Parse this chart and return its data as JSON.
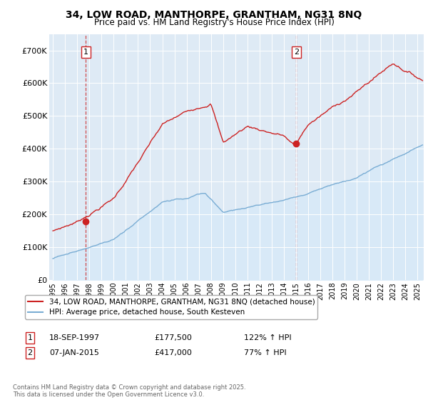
{
  "title1": "34, LOW ROAD, MANTHORPE, GRANTHAM, NG31 8NQ",
  "title2": "Price paid vs. HM Land Registry's House Price Index (HPI)",
  "hpi_color": "#7aadd4",
  "hpi_fill_color": "#d6e9f8",
  "price_color": "#cc2222",
  "vline_color": "#cc2222",
  "plot_bg_color": "#deeaf5",
  "ytick_labels": [
    "£0",
    "£100K",
    "£200K",
    "£300K",
    "£400K",
    "£500K",
    "£600K",
    "£700K"
  ],
  "yticks": [
    0,
    100000,
    200000,
    300000,
    400000,
    500000,
    600000,
    700000
  ],
  "ylim": [
    0,
    750000
  ],
  "xlim_start": 1994.7,
  "xlim_end": 2025.5,
  "sale1_year": 1997.72,
  "sale1_price": 177500,
  "sale2_year": 2015.02,
  "sale2_price": 417000,
  "legend_line1": "34, LOW ROAD, MANTHORPE, GRANTHAM, NG31 8NQ (detached house)",
  "legend_line2": "HPI: Average price, detached house, South Kesteven",
  "annotation1_date": "18-SEP-1997",
  "annotation1_price": "£177,500",
  "annotation1_hpi": "122% ↑ HPI",
  "annotation2_date": "07-JAN-2015",
  "annotation2_price": "£417,000",
  "annotation2_hpi": "77% ↑ HPI",
  "footer": "Contains HM Land Registry data © Crown copyright and database right 2025.\nThis data is licensed under the Open Government Licence v3.0."
}
